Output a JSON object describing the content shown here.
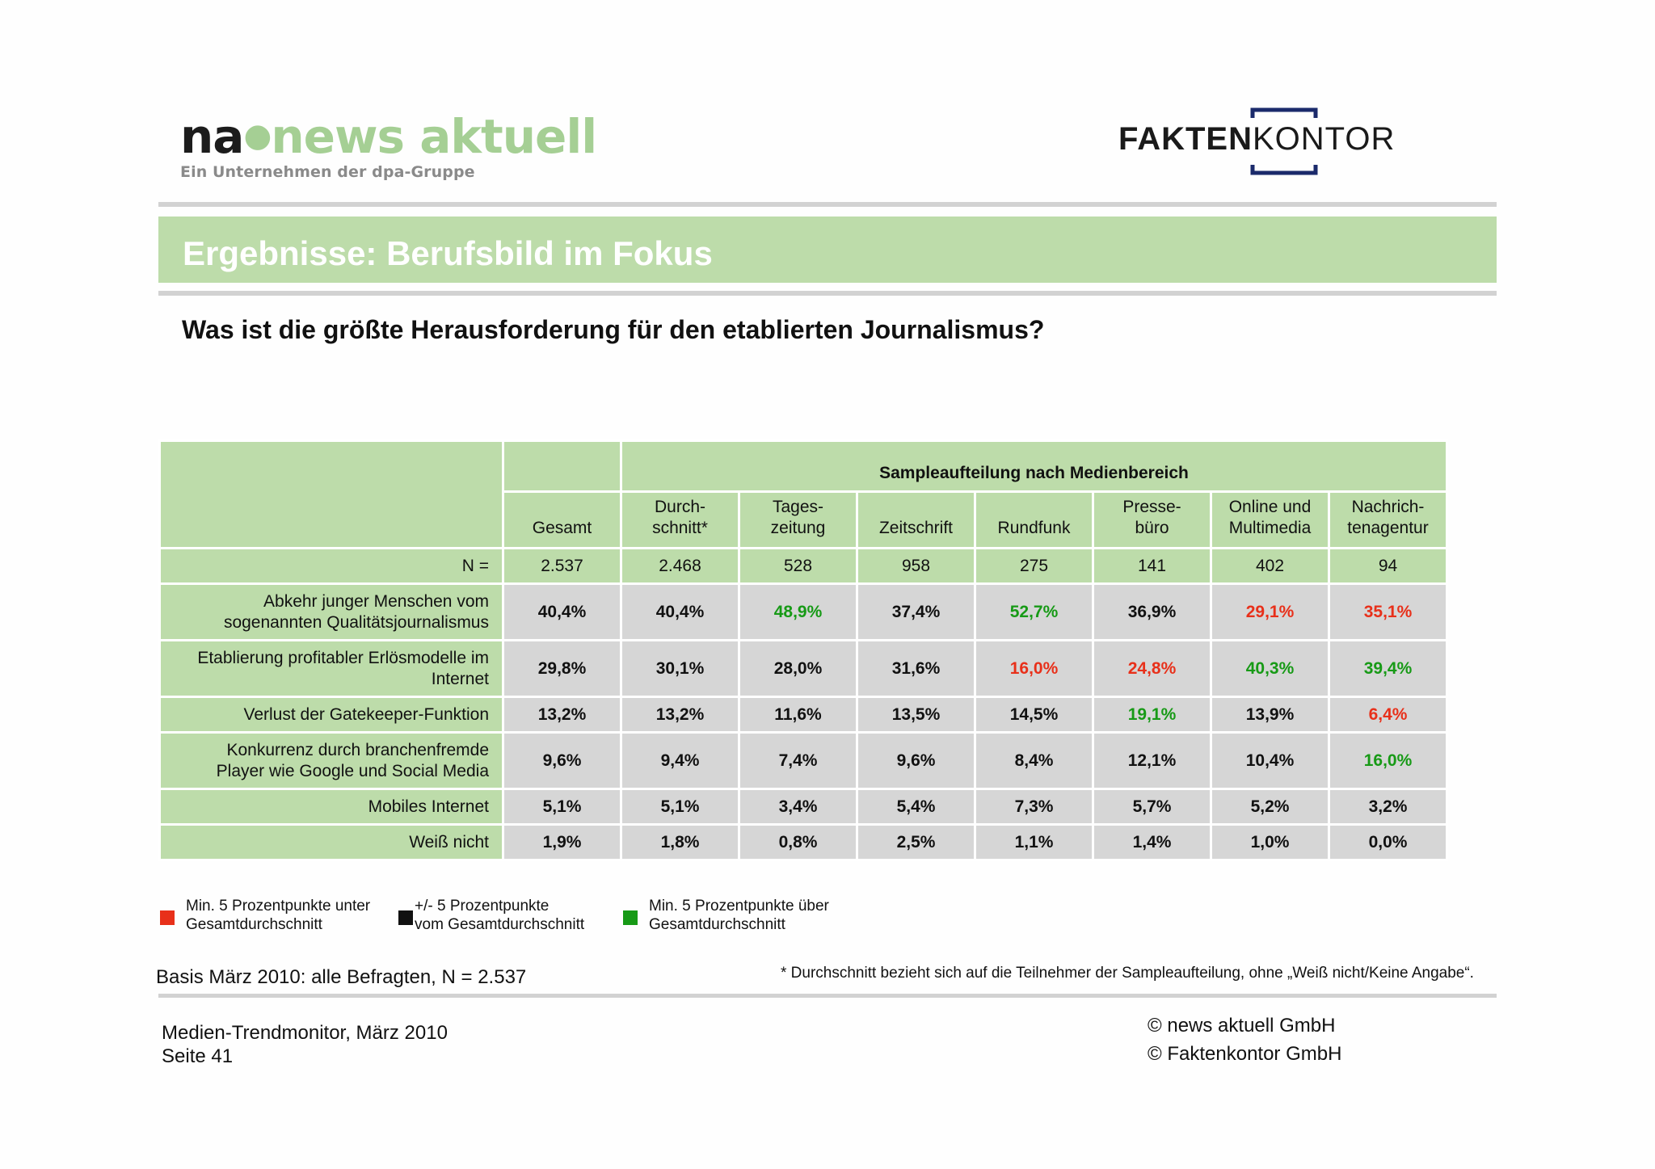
{
  "logos": {
    "na": {
      "prefix": "na",
      "name": "news aktuell",
      "tagline": "Ein Unternehmen der dpa-Gruppe"
    },
    "faktenkontor": {
      "bold": "FAKTEN",
      "light": "KONTOR"
    }
  },
  "title": "Ergebnisse: Berufsbild im Fokus",
  "question": "Was ist die größte Herausforderung für den etablierten Journalismus?",
  "table": {
    "group_header": "Sampleaufteilung nach Medienbereich",
    "columns": [
      {
        "line1": "",
        "line2": "Gesamt"
      },
      {
        "line1": "Durch-",
        "line2": "schnitt*"
      },
      {
        "line1": "Tages-",
        "line2": "zeitung"
      },
      {
        "line1": "",
        "line2": "Zeitschrift"
      },
      {
        "line1": "",
        "line2": "Rundfunk"
      },
      {
        "line1": "Presse-",
        "line2": "büro"
      },
      {
        "line1": "Online und",
        "line2": "Multimedia"
      },
      {
        "line1": "Nachrich-",
        "line2": "tenagentur"
      }
    ],
    "n_label": "N =",
    "n_values": [
      "2.537",
      "2.468",
      "528",
      "958",
      "275",
      "141",
      "402",
      "94"
    ],
    "rows": [
      {
        "label1": "Abkehr junger Menschen vom",
        "label2": "sogenannten Qualitätsjournalismus",
        "values": [
          "40,4%",
          "40,4%",
          "48,9%",
          "37,4%",
          "52,7%",
          "36,9%",
          "29,1%",
          "35,1%"
        ],
        "colors": [
          "black",
          "black",
          "green",
          "black",
          "green",
          "black",
          "red",
          "red"
        ]
      },
      {
        "label1": "Etablierung profitabler Erlösmodelle im",
        "label2": "Internet",
        "values": [
          "29,8%",
          "30,1%",
          "28,0%",
          "31,6%",
          "16,0%",
          "24,8%",
          "40,3%",
          "39,4%"
        ],
        "colors": [
          "black",
          "black",
          "black",
          "black",
          "red",
          "red",
          "green",
          "green"
        ]
      },
      {
        "label1": "Verlust der Gatekeeper-Funktion",
        "label2": "",
        "values": [
          "13,2%",
          "13,2%",
          "11,6%",
          "13,5%",
          "14,5%",
          "19,1%",
          "13,9%",
          "6,4%"
        ],
        "colors": [
          "black",
          "black",
          "black",
          "black",
          "black",
          "green",
          "black",
          "red"
        ]
      },
      {
        "label1": "Konkurrenz durch branchenfremde",
        "label2": "Player wie Google und Social Media",
        "values": [
          "9,6%",
          "9,4%",
          "7,4%",
          "9,6%",
          "8,4%",
          "12,1%",
          "10,4%",
          "16,0%"
        ],
        "colors": [
          "black",
          "black",
          "black",
          "black",
          "black",
          "black",
          "black",
          "green"
        ]
      },
      {
        "label1": "Mobiles Internet",
        "label2": "",
        "values": [
          "5,1%",
          "5,1%",
          "3,4%",
          "5,4%",
          "7,3%",
          "5,7%",
          "5,2%",
          "3,2%"
        ],
        "colors": [
          "black",
          "black",
          "black",
          "black",
          "black",
          "black",
          "black",
          "black"
        ]
      },
      {
        "label1": "Weiß nicht",
        "label2": "",
        "values": [
          "1,9%",
          "1,8%",
          "0,8%",
          "2,5%",
          "1,1%",
          "1,4%",
          "1,0%",
          "0,0%"
        ],
        "colors": [
          "black",
          "black",
          "black",
          "black",
          "black",
          "black",
          "black",
          "black"
        ]
      }
    ]
  },
  "legend": [
    {
      "color": "#e8301a",
      "line1": "Min. 5 Prozentpunkte unter",
      "line2": "Gesamtdurchschnitt"
    },
    {
      "color": "#111111",
      "line1": "+/- 5 Prozentpunkte",
      "line2": "vom Gesamtdurchschnitt"
    },
    {
      "color": "#179a16",
      "line1": "Min. 5 Prozentpunkte über",
      "line2": "Gesamtdurchschnitt"
    }
  ],
  "basis": "Basis März 2010: alle Befragten, N = 2.537",
  "footnote": "* Durchschnitt bezieht sich auf die Teilnehmer der Sampleaufteilung, ohne „Weiß nicht/Keine Angabe“.",
  "footer": {
    "source": "Medien-Trendmonitor, März 2010",
    "page": "Seite 41",
    "copyright1": "© news aktuell GmbH",
    "copyright2": "© Faktenkontor GmbH"
  },
  "colors": {
    "accent_green": "#bddcaa",
    "cell_gray": "#d6d6d6",
    "positive": "#179a16",
    "negative": "#e8301a",
    "logo_blue": "#1b2a6b"
  }
}
